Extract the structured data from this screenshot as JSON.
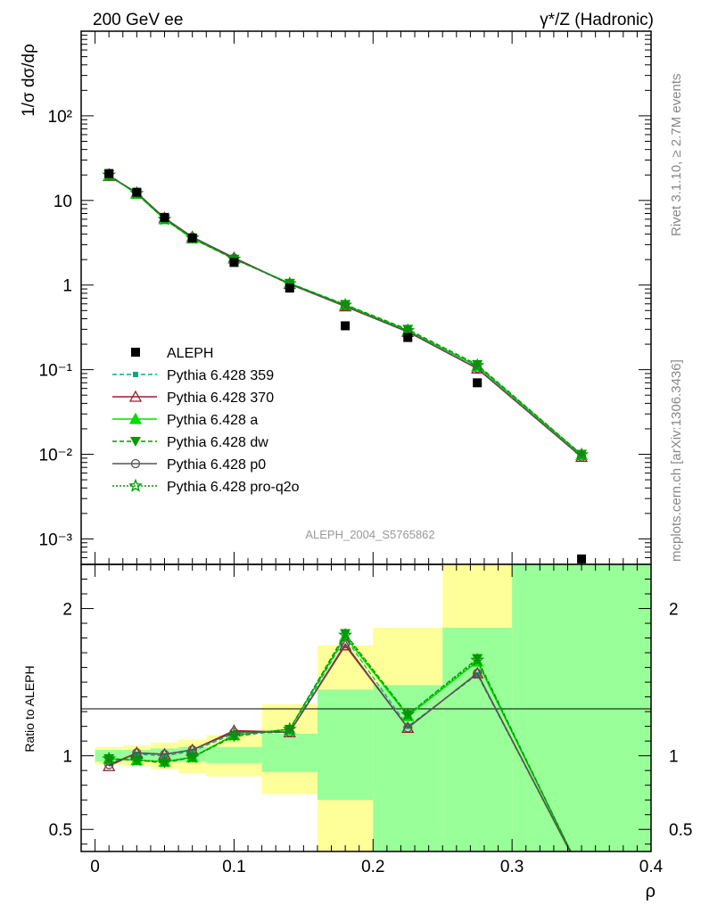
{
  "header": {
    "left": "200 GeV ee",
    "right": "γ*/Z (Hadronic)"
  },
  "side_text": {
    "rivet": "Rivet 3.1.10, ≥ 2.7M events",
    "mcplots": "mcplots.cern.ch [arXiv:1306.3436]"
  },
  "analysis_tag": "ALEPH_2004_S5765862",
  "chart_data": [
    {
      "type": "line",
      "panel": "main",
      "ylabel": "1/σ dσ/dρ",
      "xlabel": "ρ",
      "yscale": "log",
      "ylim": [
        0.0005,
        1000
      ],
      "xlim": [
        -0.01,
        0.4
      ],
      "ytick_labels": [
        "10⁻³",
        "10⁻²",
        "10⁻¹",
        "1",
        "10",
        "10²"
      ],
      "legend_position": "lower-left",
      "x": [
        0.01,
        0.03,
        0.05,
        0.07,
        0.1,
        0.14,
        0.18,
        0.225,
        0.275,
        0.35
      ],
      "data": {
        "name": "ALEPH",
        "values": [
          20.8,
          12.5,
          6.3,
          3.6,
          1.85,
          0.92,
          0.33,
          0.24,
          0.07,
          0.00058
        ]
      },
      "series": [
        {
          "name": "Pythia 6.428 359",
          "color": "#00aa88",
          "values": [
            19.6,
            12.2,
            6.1,
            3.6,
            2.05,
            1.02,
            0.56,
            0.28,
            0.105,
            0.0095
          ]
        },
        {
          "name": "Pythia 6.428 370",
          "color": "#a0182e",
          "values": [
            19.4,
            12.3,
            6.2,
            3.7,
            2.1,
            1.03,
            0.56,
            0.28,
            0.103,
            0.0093
          ]
        },
        {
          "name": "Pythia 6.428 a",
          "color": "#00dd00",
          "values": [
            19.7,
            12.0,
            6.0,
            3.55,
            2.05,
            1.05,
            0.58,
            0.29,
            0.11,
            0.0098
          ]
        },
        {
          "name": "Pythia 6.428 dw",
          "color": "#009900",
          "values": [
            20.2,
            12.0,
            6.0,
            3.55,
            2.02,
            1.05,
            0.59,
            0.3,
            0.115,
            0.01
          ]
        },
        {
          "name": "Pythia 6.428 p0",
          "color": "#555555",
          "values": [
            19.5,
            12.4,
            6.2,
            3.7,
            2.08,
            1.03,
            0.56,
            0.28,
            0.104,
            0.0093
          ]
        },
        {
          "name": "Pythia 6.428 pro-q2o",
          "color": "#009900",
          "values": [
            20.0,
            12.1,
            6.0,
            3.6,
            2.03,
            1.04,
            0.58,
            0.29,
            0.112,
            0.0099
          ]
        }
      ]
    },
    {
      "type": "line",
      "panel": "ratio",
      "ylabel": "Ratio to ALEPH",
      "xlabel": "ρ",
      "ylim": [
        0.35,
        2.3
      ],
      "xlim": [
        -0.01,
        0.4
      ],
      "ytick_labels": [
        "0.5",
        "1",
        "2"
      ],
      "xtick_labels": [
        "0",
        "0.1",
        "0.2",
        "0.3",
        "0.4"
      ],
      "reference_line": 1,
      "bands": {
        "bins": [
          [
            0,
            0.02
          ],
          [
            0.02,
            0.04
          ],
          [
            0.04,
            0.06
          ],
          [
            0.06,
            0.08
          ],
          [
            0.08,
            0.12
          ],
          [
            0.12,
            0.16
          ],
          [
            0.16,
            0.2
          ],
          [
            0.2,
            0.25
          ],
          [
            0.25,
            0.3
          ],
          [
            0.3,
            0.4
          ]
        ],
        "stat": [
          [
            0.96,
            1.04
          ],
          [
            0.97,
            1.04
          ],
          [
            0.96,
            1.05
          ],
          [
            0.96,
            1.06
          ],
          [
            0.95,
            1.06
          ],
          [
            0.89,
            1.15
          ],
          [
            0.7,
            1.45
          ],
          [
            0.35,
            1.48
          ],
          [
            0.35,
            1.87
          ],
          [
            0.35,
            2.3
          ]
        ],
        "total": [
          [
            0.94,
            1.06
          ],
          [
            0.93,
            1.07
          ],
          [
            0.91,
            1.09
          ],
          [
            0.88,
            1.11
          ],
          [
            0.86,
            1.14
          ],
          [
            0.74,
            1.35
          ],
          [
            0.35,
            1.75
          ],
          [
            0.35,
            1.87
          ],
          [
            0.35,
            2.3
          ],
          [
            0.35,
            2.3
          ]
        ]
      },
      "x": [
        0.01,
        0.03,
        0.05,
        0.07,
        0.1,
        0.14,
        0.18,
        0.225,
        0.275,
        0.35
      ],
      "series": [
        {
          "name": "Pythia 6.428 359",
          "values": [
            0.95,
            1.01,
            1.0,
            1.03,
            1.15,
            1.16,
            1.8,
            1.2,
            1.55,
            0.2
          ]
        },
        {
          "name": "Pythia 6.428 370",
          "values": [
            0.93,
            1.02,
            1.01,
            1.04,
            1.17,
            1.16,
            1.75,
            1.19,
            1.56,
            0.2
          ]
        },
        {
          "name": "Pythia 6.428 a",
          "values": [
            0.98,
            0.97,
            0.96,
            0.99,
            1.14,
            1.18,
            1.81,
            1.27,
            1.64,
            0.2
          ]
        },
        {
          "name": "Pythia 6.428 dw",
          "values": [
            0.98,
            0.97,
            0.95,
            0.99,
            1.13,
            1.18,
            1.83,
            1.28,
            1.66,
            0.2
          ]
        },
        {
          "name": "Pythia 6.428 p0",
          "values": [
            0.94,
            1.02,
            1.01,
            1.04,
            1.16,
            1.16,
            1.76,
            1.19,
            1.56,
            0.2
          ]
        },
        {
          "name": "Pythia 6.428 pro-q2o",
          "values": [
            0.98,
            0.97,
            0.96,
            0.99,
            1.14,
            1.18,
            1.82,
            1.28,
            1.65,
            0.2
          ]
        }
      ]
    }
  ]
}
